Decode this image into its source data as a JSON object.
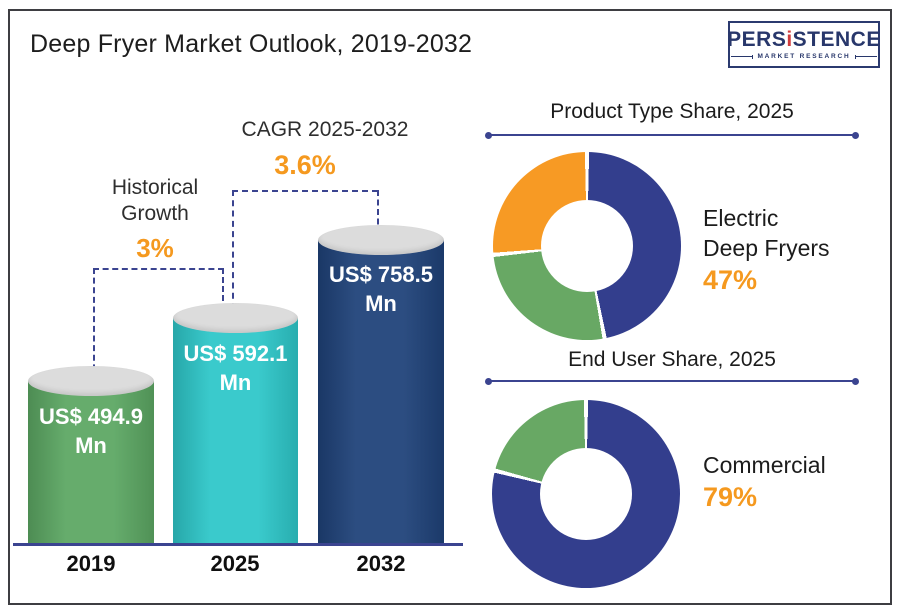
{
  "title": "Deep Fryer Market Outlook, 2019-2032",
  "logo": {
    "brand_pre": "PERS",
    "brand_i": "i",
    "brand_post": "STENCE",
    "subtitle": "MARKET RESEARCH"
  },
  "colors": {
    "accent_orange": "#f5991f",
    "navy": "#3b4490",
    "bar_green": "#5ca763",
    "bar_teal": "#2ec7c9",
    "bar_navy": "#1f4279",
    "donut_blue": "#333e8d",
    "donut_green": "#68a864",
    "donut_orange": "#f79a24"
  },
  "chart_data": [
    {
      "type": "bar",
      "title": "Deep Fryer Market Outlook, 2019-2032",
      "categories": [
        "2019",
        "2025",
        "2032"
      ],
      "values": [
        494.9,
        592.1,
        758.5
      ],
      "unit": "US$ Mn",
      "value_labels": [
        [
          "US$ 494.9",
          "Mn"
        ],
        [
          "US$ 592.1",
          "Mn"
        ],
        [
          "US$ 758.5",
          "Mn"
        ]
      ],
      "bar_colors": [
        "#5ca763",
        "#2ec7c9",
        "#1f4279"
      ],
      "ylim": [
        0,
        800
      ],
      "grid": false,
      "annotations": [
        {
          "label_lines": [
            "Historical",
            "Growth"
          ],
          "value": "3%",
          "from": "2019",
          "to": "2025"
        },
        {
          "label_lines": [
            "CAGR 2025-2032"
          ],
          "value": "3.6%",
          "from": "2025",
          "to": "2032"
        }
      ]
    },
    {
      "type": "pie",
      "subtype": "donut",
      "title": "Product Type Share, 2025",
      "slices": [
        {
          "label": "Electric Deep Fryers",
          "value": 47,
          "color": "#333e8d"
        },
        {
          "label": "",
          "value": 26.5,
          "color": "#68a864"
        },
        {
          "label": "",
          "value": 26.5,
          "color": "#f79a24"
        }
      ],
      "callout": {
        "lines": [
          "Electric",
          "Deep Fryers"
        ],
        "value": "47%"
      }
    },
    {
      "type": "pie",
      "subtype": "donut",
      "title": "End User Share, 2025",
      "slices": [
        {
          "label": "Commercial",
          "value": 79,
          "color": "#333e8d"
        },
        {
          "label": "",
          "value": 21,
          "color": "#68a864"
        }
      ],
      "callout": {
        "lines": [
          "Commercial"
        ],
        "value": "79%"
      }
    }
  ]
}
